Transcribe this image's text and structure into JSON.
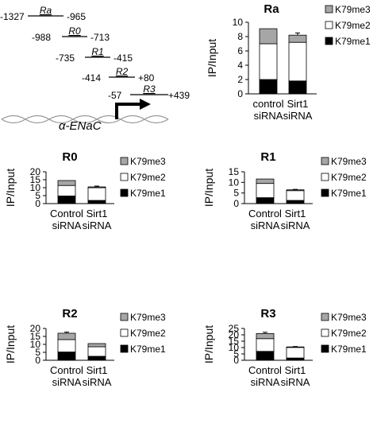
{
  "diagram": {
    "regions": [
      {
        "name": "Ra",
        "start": "-1327",
        "end": "-965"
      },
      {
        "name": "R0",
        "start": "-988",
        "end": "-713"
      },
      {
        "name": "R1",
        "start": "-735",
        "end": "-415"
      },
      {
        "name": "R2",
        "start": "-414",
        "end": "+80"
      },
      {
        "name": "R3",
        "start": "-57",
        "end": "+439"
      }
    ],
    "gene_label": "α-ENaC"
  },
  "chart_data": [
    {
      "type": "bar",
      "stacked": true,
      "title": "Ra",
      "ylabel": "IP/Input",
      "ylim": [
        0,
        10
      ],
      "yticks": [
        0,
        2,
        4,
        6,
        8,
        10
      ],
      "categories": [
        [
          "control",
          "siRNA"
        ],
        [
          "Sirt1",
          "siRNA"
        ]
      ],
      "series": [
        {
          "name": "K79me1",
          "color": "#000000",
          "values": [
            2.0,
            1.8
          ],
          "errors": [
            0.3,
            0.5
          ]
        },
        {
          "name": "K79me2",
          "color": "#ffffff",
          "values": [
            5.0,
            5.4
          ],
          "errors": [
            0.8,
            0.5
          ]
        },
        {
          "name": "K79me3",
          "color": "#a6a6a6",
          "values": [
            2.1,
            1.0
          ],
          "errors": [
            0.0,
            0.3
          ]
        }
      ],
      "legend": "right",
      "grid": false
    },
    {
      "type": "bar",
      "stacked": true,
      "title": "R0",
      "ylabel": "IP/Input",
      "ylim": [
        0,
        20
      ],
      "yticks": [
        0,
        5,
        10,
        15,
        20
      ],
      "categories": [
        [
          "Control",
          "siRNA"
        ],
        [
          "Sirt1",
          "siRNA"
        ]
      ],
      "series": [
        {
          "name": "K79me1",
          "color": "#000000",
          "values": [
            4.8,
            2.0
          ],
          "errors": [
            0.5,
            0.0
          ]
        },
        {
          "name": "K79me2",
          "color": "#ffffff",
          "values": [
            6.6,
            8.0
          ],
          "errors": [
            0.4,
            0.0
          ]
        },
        {
          "name": "K79me3",
          "color": "#a6a6a6",
          "values": [
            3.1,
            0.5
          ],
          "errors": [
            0.0,
            0.5
          ]
        }
      ],
      "legend": "right",
      "grid": false
    },
    {
      "type": "bar",
      "stacked": true,
      "title": "R1",
      "ylabel": "IP/Input",
      "ylim": [
        0,
        15
      ],
      "yticks": [
        0,
        5,
        10,
        15
      ],
      "categories": [
        [
          "Control",
          "siRNA"
        ],
        [
          "Sirt1",
          "siRNA"
        ]
      ],
      "series": [
        {
          "name": "K79me1",
          "color": "#000000",
          "values": [
            2.8,
            1.5
          ],
          "errors": [
            0.0,
            0.3
          ]
        },
        {
          "name": "K79me2",
          "color": "#ffffff",
          "values": [
            6.7,
            4.6
          ],
          "errors": [
            0.4,
            0.0
          ]
        },
        {
          "name": "K79me3",
          "color": "#a6a6a6",
          "values": [
            2.1,
            0.4
          ],
          "errors": [
            0.0,
            0.2
          ]
        }
      ],
      "legend": "right",
      "grid": false
    },
    {
      "type": "bar",
      "stacked": true,
      "title": "R2",
      "ylabel": "IP/Input",
      "ylim": [
        0,
        20
      ],
      "yticks": [
        0,
        5,
        10,
        15,
        20
      ],
      "categories": [
        [
          "Control",
          "siRNA"
        ],
        [
          "Sirt1",
          "siRNA"
        ]
      ],
      "series": [
        {
          "name": "K79me1",
          "color": "#000000",
          "values": [
            5.2,
            2.5
          ],
          "errors": [
            0.8,
            0.8
          ]
        },
        {
          "name": "K79me2",
          "color": "#ffffff",
          "values": [
            7.8,
            6.0
          ],
          "errors": [
            0.0,
            0.7
          ]
        },
        {
          "name": "K79me3",
          "color": "#a6a6a6",
          "values": [
            4.0,
            2.0
          ],
          "errors": [
            0.7,
            0.0
          ]
        }
      ],
      "legend": "right",
      "grid": false
    },
    {
      "type": "bar",
      "stacked": true,
      "title": "R3",
      "ylabel": "IP/Input",
      "ylim": [
        0,
        25
      ],
      "yticks": [
        0,
        5,
        10,
        15,
        20,
        25
      ],
      "categories": [
        [
          "Control",
          "siRNA"
        ],
        [
          "Sirt1",
          "siRNA"
        ]
      ],
      "series": [
        {
          "name": "K79me1",
          "color": "#000000",
          "values": [
            7.0,
            1.8
          ],
          "errors": [
            1.5,
            0.5
          ]
        },
        {
          "name": "K79me2",
          "color": "#ffffff",
          "values": [
            10.0,
            8.3
          ],
          "errors": [
            0.0,
            0.0
          ]
        },
        {
          "name": "K79me3",
          "color": "#a6a6a6",
          "values": [
            4.0,
            0.4
          ],
          "errors": [
            1.0,
            0.3
          ]
        }
      ],
      "legend": "right",
      "grid": false
    }
  ]
}
